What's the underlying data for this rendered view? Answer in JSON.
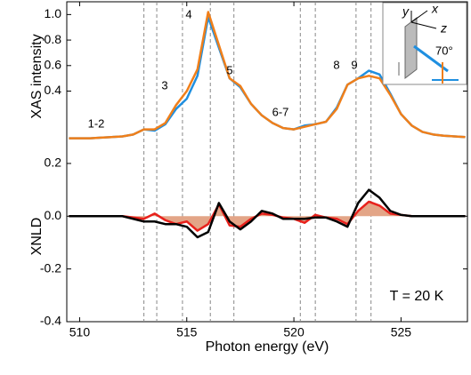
{
  "chart_data": [
    {
      "type": "line",
      "ylabel": "XAS intensity",
      "x": [
        509.5,
        510,
        510.5,
        511,
        511.5,
        512,
        512.5,
        513,
        513.5,
        514,
        514.5,
        515,
        515.5,
        516,
        516.5,
        517,
        517.5,
        518,
        518.5,
        519,
        519.5,
        520,
        520.5,
        521,
        521.5,
        522,
        522.5,
        523,
        523.5,
        524,
        524.5,
        525,
        525.5,
        526,
        526.5,
        527,
        527.5,
        528
      ],
      "series": [
        {
          "color": "#1f8fe0",
          "values": [
            0.03,
            0.03,
            0.03,
            0.035,
            0.04,
            0.045,
            0.06,
            0.1,
            0.09,
            0.14,
            0.26,
            0.34,
            0.52,
            0.98,
            0.74,
            0.5,
            0.43,
            0.3,
            0.21,
            0.15,
            0.11,
            0.1,
            0.13,
            0.14,
            0.16,
            0.27,
            0.45,
            0.5,
            0.56,
            0.53,
            0.38,
            0.22,
            0.13,
            0.08,
            0.06,
            0.05,
            0.045,
            0.04
          ]
        },
        {
          "color": "#f07f1a",
          "values": [
            0.03,
            0.03,
            0.03,
            0.035,
            0.04,
            0.045,
            0.06,
            0.1,
            0.1,
            0.15,
            0.29,
            0.4,
            0.57,
            1.02,
            0.76,
            0.5,
            0.44,
            0.3,
            0.21,
            0.15,
            0.11,
            0.1,
            0.12,
            0.14,
            0.16,
            0.26,
            0.45,
            0.5,
            0.52,
            0.5,
            0.37,
            0.22,
            0.13,
            0.08,
            0.06,
            0.05,
            0.045,
            0.04
          ]
        }
      ],
      "xlim": [
        509.4,
        528.1
      ],
      "ylim": [
        -0.07,
        1.1
      ],
      "yticks": [
        0.4,
        0.6,
        0.8,
        {
          "value": 1,
          "label": "1.0"
        }
      ],
      "reference_lines": [
        513.0,
        513.6,
        514.8,
        516.1,
        517.2,
        520.3,
        521.0,
        522.9,
        523.6
      ],
      "annotations": [
        "1-2",
        "3",
        "4",
        "5",
        "6-7",
        "8",
        "9"
      ],
      "inset_labels": [
        "y",
        "x",
        "z",
        "70°"
      ]
    },
    {
      "type": "line",
      "ylabel": "XNLD",
      "xlabel": "Photon energy (eV)",
      "x": [
        509.5,
        510,
        510.5,
        511,
        511.5,
        512,
        512.5,
        513,
        513.5,
        514,
        514.5,
        515,
        515.5,
        516,
        516.5,
        517,
        517.5,
        518,
        518.5,
        519,
        519.5,
        520,
        520.5,
        521,
        521.5,
        522,
        522.5,
        523,
        523.5,
        524,
        524.5,
        525,
        525.5,
        526,
        526.5,
        527,
        527.5,
        528
      ],
      "series": [
        {
          "color": "#e8211c",
          "fill": "#e3a587",
          "values": [
            0,
            0,
            0,
            0,
            0,
            0,
            -0.005,
            -0.01,
            0.01,
            -0.015,
            -0.03,
            -0.02,
            -0.055,
            -0.03,
            0.045,
            -0.035,
            -0.04,
            -0.01,
            0.01,
            0.005,
            -0.005,
            -0.01,
            -0.025,
            0.005,
            -0.005,
            -0.01,
            -0.03,
            0.02,
            0.055,
            0.04,
            0.01,
            0.005,
            0,
            0,
            0,
            0,
            0,
            0
          ]
        },
        {
          "color": "#000000",
          "values": [
            0,
            0,
            0,
            0,
            0,
            0,
            -0.01,
            -0.02,
            -0.02,
            -0.03,
            -0.03,
            -0.04,
            -0.08,
            -0.06,
            0.05,
            -0.02,
            -0.05,
            -0.02,
            0.02,
            0.01,
            -0.01,
            -0.01,
            -0.01,
            -0.005,
            -0.005,
            -0.02,
            -0.04,
            0.05,
            0.1,
            0.07,
            0.02,
            0.005,
            0,
            0,
            0,
            0,
            0,
            0
          ]
        }
      ],
      "xlim": [
        509.4,
        528.1
      ],
      "ylim": [
        -0.4,
        0.247
      ],
      "xticks": [
        510,
        515,
        520,
        525
      ],
      "yticks": [
        -0.4,
        -0.2,
        {
          "value": 0,
          "label": "0.0"
        },
        0.2
      ],
      "annotations": [
        "T = 20 K"
      ]
    }
  ]
}
